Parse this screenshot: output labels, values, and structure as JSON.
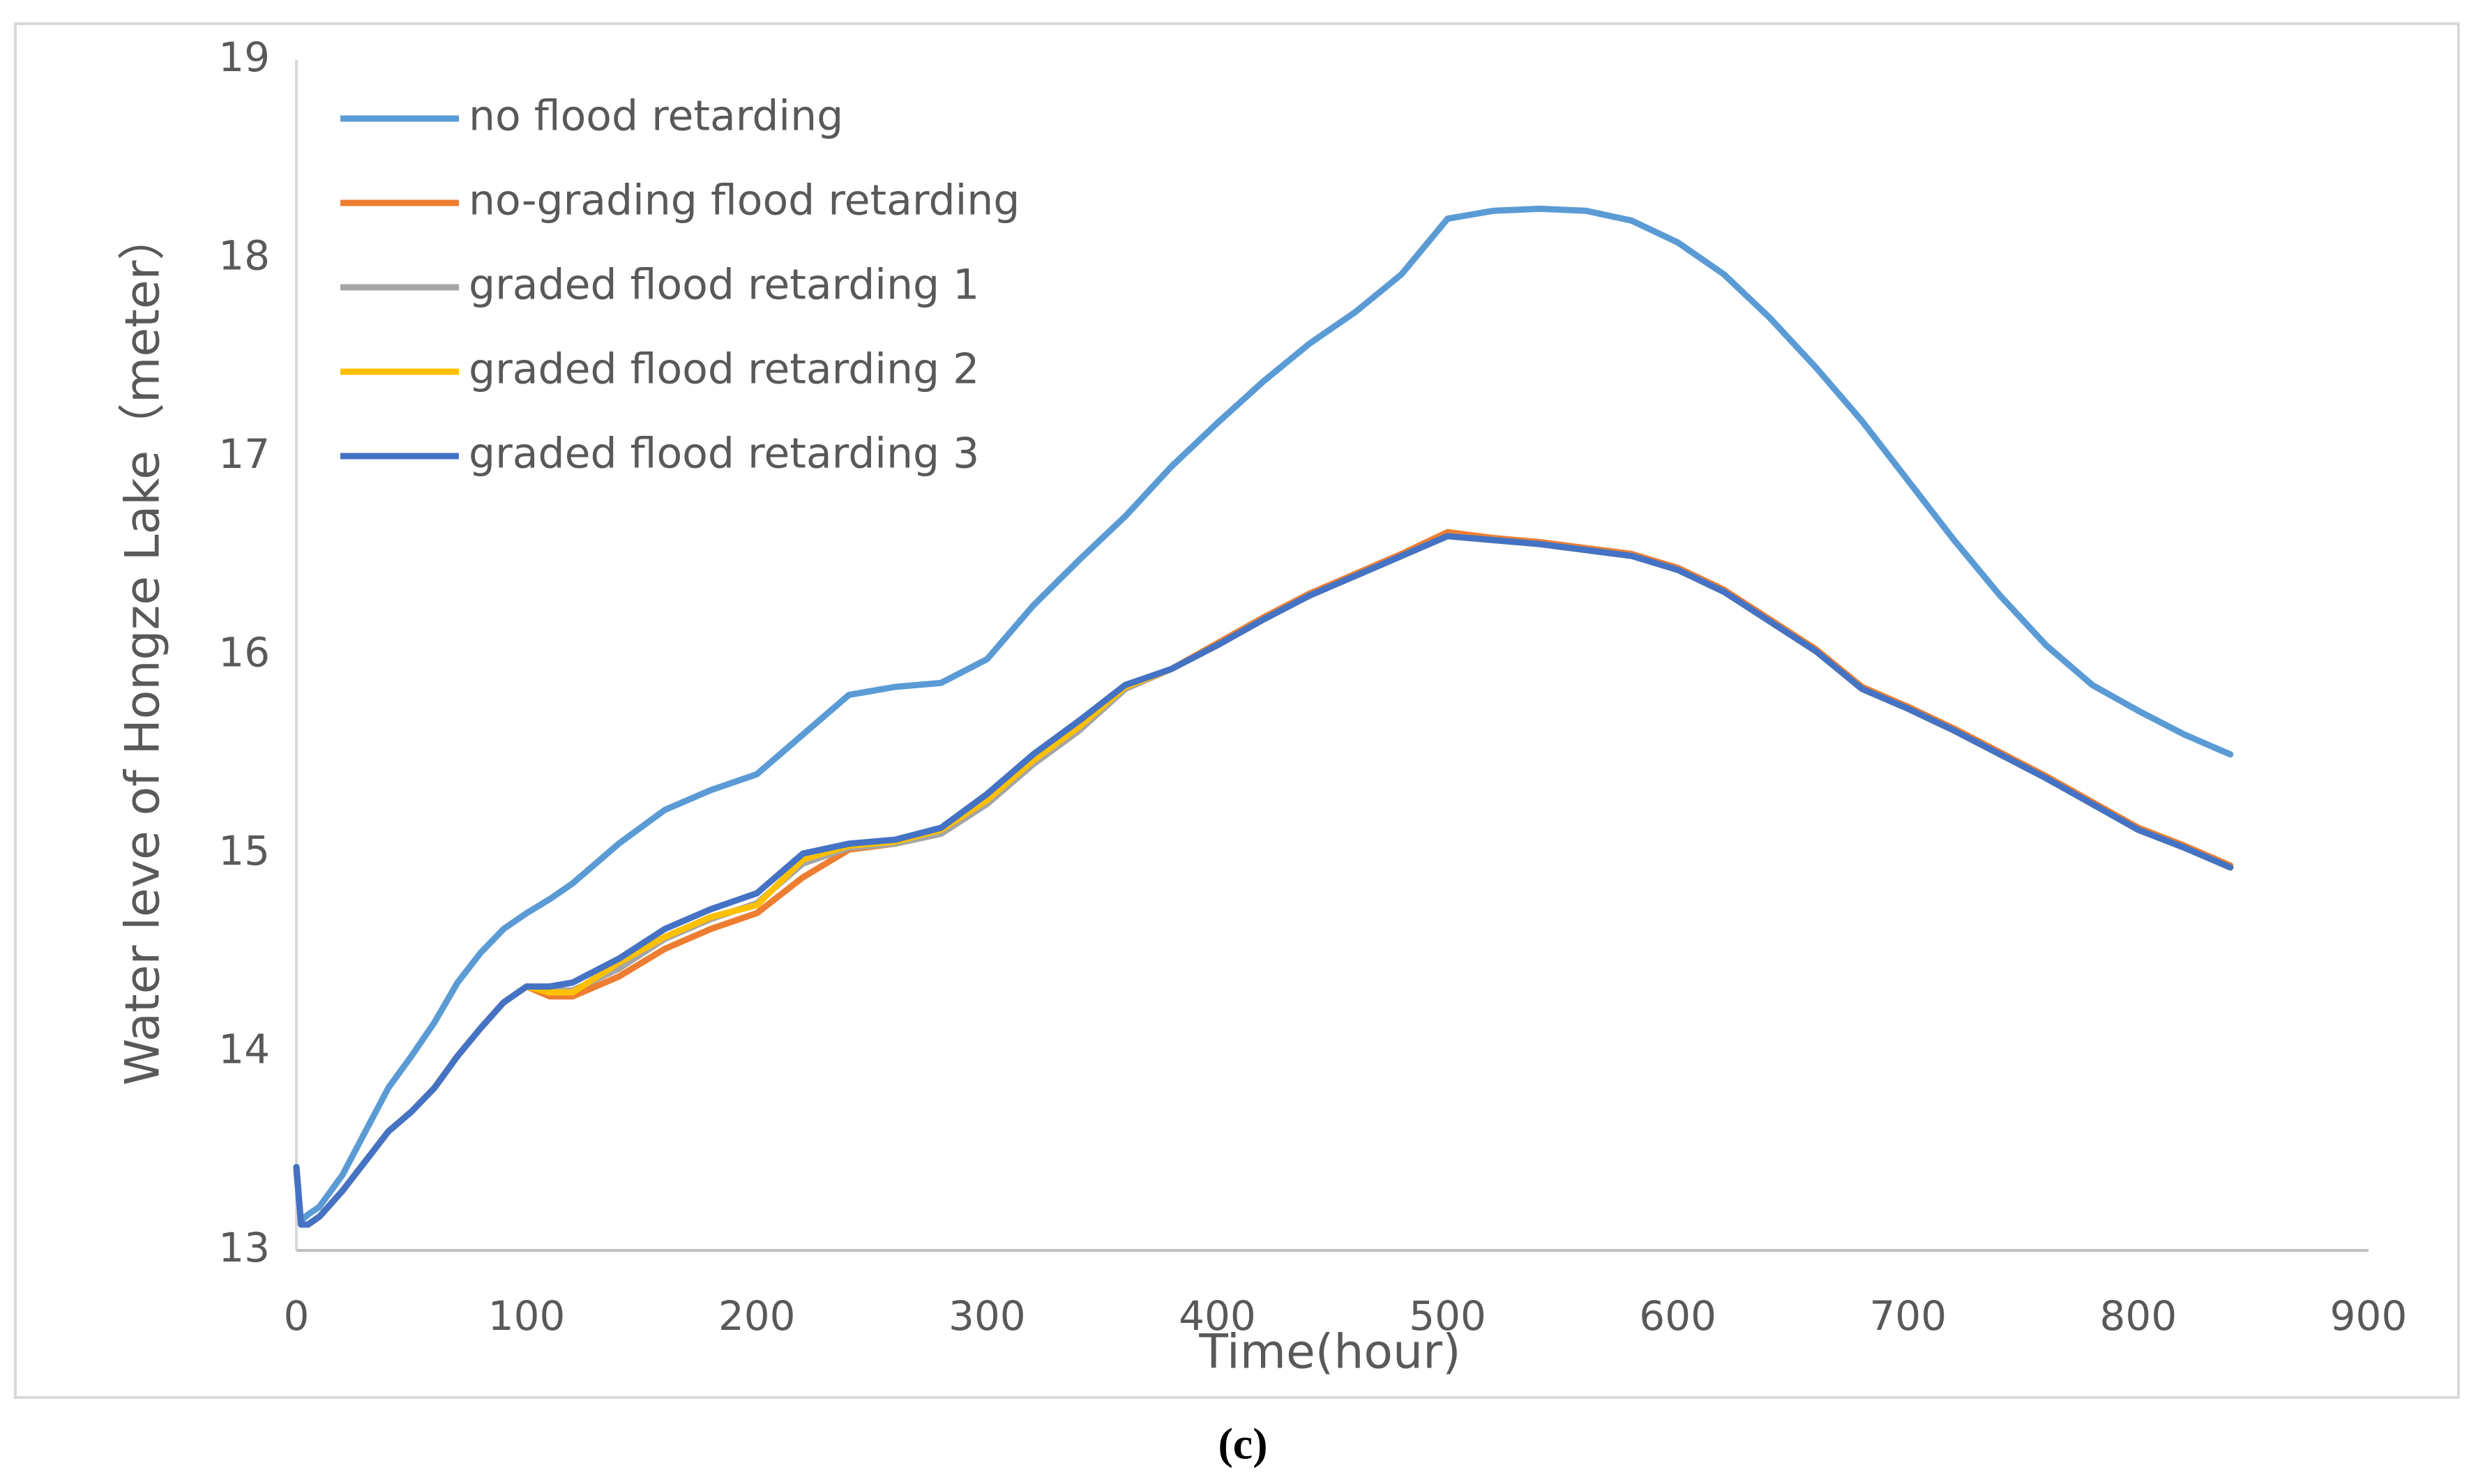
{
  "chart_data": {
    "type": "line",
    "caption": "(c)",
    "x_label": "Time(hour)",
    "y_label": "Water leve of Hongze Lake（meter）",
    "xlim": [
      0,
      900
    ],
    "xticks": [
      0,
      100,
      200,
      300,
      400,
      500,
      600,
      700,
      800,
      900
    ],
    "ylim": [
      13,
      19
    ],
    "yticks": [
      13,
      14,
      15,
      16,
      17,
      18,
      19
    ],
    "legend": "upper left",
    "x": [
      0,
      2,
      5,
      10,
      20,
      30,
      40,
      50,
      60,
      70,
      80,
      90,
      100,
      110,
      120,
      140,
      160,
      180,
      200,
      220,
      240,
      260,
      280,
      300,
      320,
      340,
      360,
      380,
      400,
      420,
      440,
      460,
      480,
      500,
      520,
      540,
      560,
      580,
      600,
      620,
      640,
      660,
      680,
      700,
      720,
      740,
      760,
      780,
      800,
      820,
      840
    ],
    "series": [
      {
        "name": "no flood retarding",
        "color": "#5b9bd5",
        "values": [
          13.4,
          13.15,
          13.18,
          13.22,
          13.38,
          13.6,
          13.82,
          13.98,
          14.15,
          14.35,
          14.5,
          14.62,
          14.7,
          14.77,
          14.85,
          15.05,
          15.22,
          15.32,
          15.4,
          15.6,
          15.8,
          15.84,
          15.86,
          15.98,
          16.25,
          16.48,
          16.7,
          16.95,
          17.17,
          17.38,
          17.57,
          17.73,
          17.92,
          18.2,
          18.24,
          18.25,
          18.24,
          18.19,
          18.08,
          17.92,
          17.7,
          17.45,
          17.18,
          16.88,
          16.58,
          16.3,
          16.05,
          15.85,
          15.72,
          15.6,
          15.5
        ]
      },
      {
        "name": "no-grading flood retarding",
        "color": "#ed7d31",
        "values": [
          13.42,
          13.13,
          13.13,
          13.17,
          13.3,
          13.45,
          13.6,
          13.7,
          13.82,
          13.98,
          14.12,
          14.25,
          14.33,
          14.28,
          14.28,
          14.38,
          14.52,
          14.62,
          14.7,
          14.88,
          15.02,
          15.05,
          15.12,
          15.28,
          15.48,
          15.65,
          15.84,
          15.93,
          16.06,
          16.19,
          16.31,
          16.41,
          16.51,
          16.62,
          16.59,
          16.57,
          16.54,
          16.51,
          16.44,
          16.33,
          16.18,
          16.03,
          15.84,
          15.74,
          15.63,
          15.51,
          15.39,
          15.26,
          15.13,
          15.04,
          14.94
        ]
      },
      {
        "name": "graded flood retarding 1",
        "color": "#a5a5a5",
        "values": [
          13.42,
          13.13,
          13.13,
          13.17,
          13.3,
          13.45,
          13.6,
          13.7,
          13.82,
          13.98,
          14.12,
          14.25,
          14.33,
          14.31,
          14.31,
          14.42,
          14.57,
          14.67,
          14.75,
          14.95,
          15.03,
          15.05,
          15.1,
          15.25,
          15.45,
          15.62,
          15.83,
          15.93,
          16.05,
          16.18,
          16.3,
          16.4,
          16.5,
          16.6,
          16.58,
          16.56,
          16.53,
          16.5,
          16.43,
          16.32,
          16.17,
          16.02,
          15.83,
          15.73,
          15.62,
          15.5,
          15.38,
          15.25,
          15.12,
          15.03,
          14.93
        ]
      },
      {
        "name": "graded flood retarding 2",
        "color": "#ffc000",
        "values": [
          13.42,
          13.13,
          13.13,
          13.17,
          13.3,
          13.45,
          13.6,
          13.7,
          13.82,
          13.98,
          14.12,
          14.25,
          14.33,
          14.3,
          14.3,
          14.45,
          14.58,
          14.68,
          14.74,
          14.97,
          15.04,
          15.06,
          15.12,
          15.27,
          15.47,
          15.64,
          15.84,
          15.93,
          16.05,
          16.18,
          16.3,
          16.4,
          16.5,
          16.6,
          16.58,
          16.56,
          16.53,
          16.5,
          16.43,
          16.32,
          16.17,
          16.02,
          15.83,
          15.73,
          15.62,
          15.5,
          15.38,
          15.25,
          15.12,
          15.03,
          14.93
        ]
      },
      {
        "name": "graded flood retarding 3",
        "color": "#4472c4",
        "values": [
          13.42,
          13.13,
          13.13,
          13.17,
          13.3,
          13.45,
          13.6,
          13.7,
          13.82,
          13.98,
          14.12,
          14.25,
          14.33,
          14.33,
          14.35,
          14.47,
          14.62,
          14.72,
          14.8,
          15.0,
          15.05,
          15.07,
          15.13,
          15.3,
          15.5,
          15.67,
          15.85,
          15.93,
          16.05,
          16.18,
          16.3,
          16.4,
          16.5,
          16.6,
          16.58,
          16.56,
          16.53,
          16.5,
          16.43,
          16.32,
          16.17,
          16.02,
          15.83,
          15.73,
          15.62,
          15.5,
          15.38,
          15.25,
          15.12,
          15.03,
          14.93
        ]
      }
    ]
  }
}
